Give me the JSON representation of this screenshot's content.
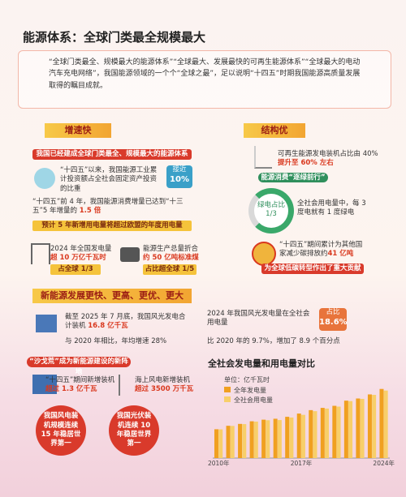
{
  "header": {
    "title": "能源体系：全球门类最全规模最大",
    "intro": "“全球门类最全、规模最大的能源体系”“全球最大、发展最快的可再生能源体系”“全球最大的电动汽车充电网络”，我国能源领域的一个个“全球之最”，足以说明“十四五”时期我国能源高质量发展取得的瞩目成就。"
  },
  "left": {
    "heading": "增速快",
    "banner": "我国已经建成全球门类最全、规模最大的能源体系",
    "investment": {
      "text": "“十四五”以来，我国能源工业累计投资额占全社会固定资产投资的比重",
      "badge_top": "接近",
      "badge_value": "10%"
    },
    "consumption": {
      "text": "“十四五”前 4 年，我国能源消费增量已达到“十三五”5 年增量的",
      "emphasis": "1.5 倍"
    },
    "forecast": "预计 5 年新增用电量将超过欧盟的年度用电量",
    "generation": {
      "text": "2024 年全国发电量",
      "emphasis": "超 10 万亿千瓦时",
      "tag": "占全球 1/3"
    },
    "production": {
      "text": "能源生产总量折合",
      "emphasis": "约 50 亿吨标准煤",
      "tag": "占比超全球 1/5"
    }
  },
  "right": {
    "heading": "结构优",
    "renewable": {
      "text": "可再生能源发电装机占比由 40%",
      "emphasis": "提升至 60% 左右"
    },
    "pill": "能源消费“逐绿前行”",
    "donut_label": "绿电占比",
    "donut_value": "1/3",
    "green_text": "全社会用电量中，每 3 度电就有 1 度绿电",
    "carbon": {
      "text": "“十四五”期间累计为其他国家减少碳排放约",
      "emphasis": "41 亿吨"
    },
    "contribution": "为全球低碳转型作出了重大贡献"
  },
  "newenergy": {
    "heading": "新能源发展更快、更高、更优、更大",
    "capacity": {
      "text": "截至 2025 年 7 月底，我国风光发电合计装机",
      "emphasis": "16.8 亿千瓦",
      "growth": "与 2020 年相比，年均增速 28%"
    },
    "share": {
      "text": "2024 年我国风光发电量在全社会用电量",
      "badge_top": "占比",
      "badge_value": "18.6%",
      "compare": "比 2020 年的 9.7%，增加了 8.9 个百分点"
    },
    "desert": "“沙戈荒”成为新能源建设的新阵地",
    "added": {
      "text": "“十四五”期间新增装机",
      "emphasis": "超过 1.3 亿千瓦"
    },
    "offshore": {
      "text": "海上风电新增装机",
      "emphasis": "超过 3500 万千瓦"
    },
    "wind_rank": "我国风电装机规模连续 15 年稳居世界第一",
    "solar_rank": "我国光伏装机连续 10 年稳居世界第一"
  },
  "chart_data": {
    "type": "bar",
    "title": "全社会发电量和用电量对比",
    "unit": "单位：亿千瓦时",
    "categories": [
      "2010年",
      null,
      null,
      null,
      null,
      null,
      null,
      "2017年",
      null,
      null,
      null,
      null,
      null,
      null,
      "2024年"
    ],
    "series": [
      {
        "name": "全年发电量",
        "color": "#f0a020",
        "values": [
          42072,
          47130,
          49875,
          53721,
          56045,
          57399,
          60228,
          64951,
          69940,
          73253,
          76236,
          83768,
          86941,
          92888,
          100869
        ]
      },
      {
        "name": "全社会用电量",
        "color": "#f8cf6a",
        "values": [
          41923,
          46928,
          49591,
          53223,
          55233,
          55500,
          59198,
          63077,
          68449,
          72255,
          75110,
          83128,
          86372,
          92241,
          98521
        ]
      }
    ],
    "ylim": [
      0,
      110000
    ]
  }
}
